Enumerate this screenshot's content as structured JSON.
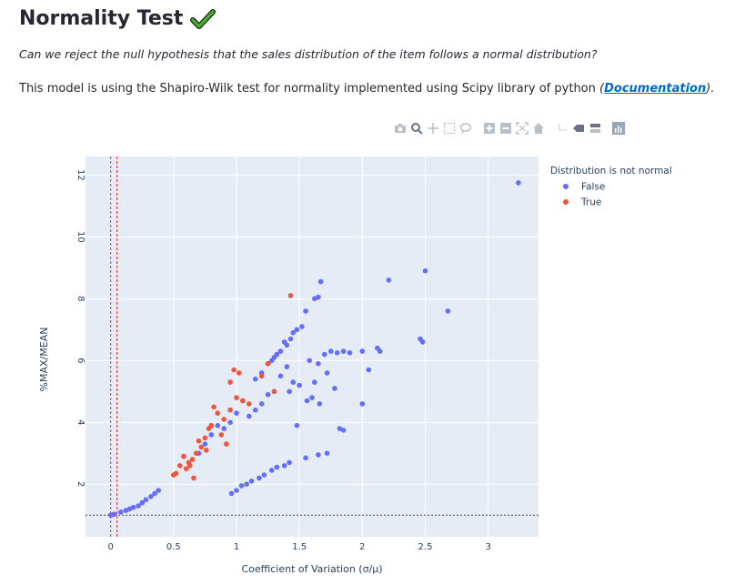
{
  "header": {
    "title": "Normality Test",
    "check_icon": "green-checkmark-icon",
    "question": "Can we reject the null hypothesis that the sales distribution of the item follows a normal distribution?",
    "model_text_before": "This model is using the Shapiro-Wilk test for normality implemented using Scipy library of python ",
    "paren_open": "(",
    "doc_link": "Documentation",
    "paren_close": ").",
    "link_color": "#0068c9"
  },
  "modebar": {
    "icons": [
      "camera-icon",
      "zoom-icon",
      "pan-icon",
      "box-select-icon",
      "lasso-select-icon",
      "zoom-in-icon",
      "zoom-out-icon",
      "autoscale-icon",
      "reset-axes-icon",
      "spike-lines-icon",
      "hover-closest-icon",
      "hover-compare-icon",
      "plotly-logo-icon"
    ]
  },
  "chart_data": {
    "type": "scatter",
    "xlabel": "Coefficient of Variation (σ/μ)",
    "ylabel": "%MAX/MEAN",
    "xlim": [
      -0.2,
      3.4
    ],
    "ylim": [
      0.3,
      12.6
    ],
    "x_ticks": [
      0,
      0.5,
      1,
      1.5,
      2,
      2.5,
      3
    ],
    "x_tick_labels": [
      "0",
      "0.5",
      "1",
      "1.5",
      "2",
      "2.5",
      "3"
    ],
    "y_ticks": [
      2,
      4,
      6,
      8,
      10,
      12
    ],
    "y_tick_labels": [
      "2",
      "4",
      "6",
      "8",
      "10",
      "12"
    ],
    "grid": true,
    "legend_title": "Distribution is not normal",
    "legend_placement": "top-right",
    "reference_lines": {
      "vertical_x": [
        0,
        0.05
      ],
      "horizontal_y": 1.0
    },
    "colors": {
      "False": "#636efa",
      "True": "#ef553b",
      "plot_bg": "#e5ecf6",
      "vline": "#e03030",
      "hline": "#444444"
    },
    "series": [
      {
        "name": "False",
        "x": [
          0.0,
          0.02,
          0.03,
          3.24,
          2.5,
          2.68,
          2.21,
          1.67,
          1.65,
          1.62,
          1.55,
          1.52,
          1.48,
          1.45,
          1.43,
          1.4,
          1.38,
          1.35,
          1.32,
          1.3,
          1.28,
          1.25,
          2.0,
          2.12,
          2.14,
          1.7,
          1.75,
          1.8,
          1.85,
          1.9,
          2.05,
          1.58,
          1.65,
          1.72,
          1.78,
          1.62,
          2.0,
          1.82,
          1.85,
          1.72,
          1.65,
          1.55,
          1.42,
          1.38,
          1.32,
          1.28,
          1.22,
          1.18,
          1.12,
          1.08,
          1.04,
          1.0,
          0.96,
          2.48,
          2.46,
          1.5,
          1.45,
          1.42,
          1.6,
          1.66,
          1.56,
          1.48,
          0.08,
          0.12,
          0.15,
          0.18,
          0.22,
          0.25,
          0.28,
          0.32,
          0.35,
          0.38,
          1.1,
          1.15,
          1.2,
          1.25,
          0.9,
          0.95,
          1.0,
          1.05,
          0.7,
          0.75,
          0.8,
          0.85,
          1.3,
          1.35,
          1.4,
          1.2,
          1.15
        ],
        "y": [
          1.0,
          1.02,
          1.03,
          11.75,
          8.9,
          7.6,
          8.6,
          8.55,
          8.05,
          8.0,
          7.6,
          7.1,
          7.0,
          6.9,
          6.7,
          6.5,
          6.6,
          6.3,
          6.2,
          6.1,
          6.0,
          5.9,
          6.3,
          6.4,
          6.3,
          6.2,
          6.3,
          6.25,
          6.3,
          6.25,
          5.7,
          6.0,
          5.9,
          5.6,
          5.1,
          5.3,
          4.6,
          3.8,
          3.75,
          3.0,
          2.95,
          2.85,
          2.7,
          2.6,
          2.55,
          2.45,
          2.3,
          2.2,
          2.1,
          2.0,
          1.95,
          1.8,
          1.7,
          6.6,
          6.7,
          5.2,
          5.3,
          5.0,
          4.8,
          4.6,
          4.7,
          3.9,
          1.1,
          1.15,
          1.2,
          1.25,
          1.3,
          1.4,
          1.5,
          1.6,
          1.7,
          1.8,
          4.2,
          4.4,
          4.6,
          4.9,
          3.8,
          4.0,
          4.3,
          4.7,
          3.0,
          3.3,
          3.6,
          3.9,
          5.0,
          5.5,
          5.8,
          5.6,
          5.4
        ]
      },
      {
        "name": "True",
        "x": [
          1.43,
          0.98,
          1.02,
          0.95,
          1.05,
          1.2,
          1.25,
          1.3,
          0.82,
          0.85,
          0.9,
          0.88,
          0.78,
          0.75,
          0.72,
          0.7,
          0.68,
          0.65,
          0.62,
          0.6,
          0.58,
          0.55,
          0.52,
          0.5,
          1.0,
          1.1,
          0.95,
          0.92,
          0.8,
          0.76,
          0.66,
          0.63
        ],
        "y": [
          8.1,
          5.7,
          5.6,
          5.3,
          4.7,
          5.5,
          5.9,
          5.0,
          4.5,
          4.3,
          4.1,
          3.6,
          3.8,
          3.5,
          3.2,
          3.4,
          3.0,
          2.8,
          2.7,
          2.5,
          2.9,
          2.6,
          2.35,
          2.3,
          4.8,
          4.6,
          4.4,
          3.3,
          3.9,
          3.1,
          2.2,
          2.6
        ]
      }
    ]
  }
}
